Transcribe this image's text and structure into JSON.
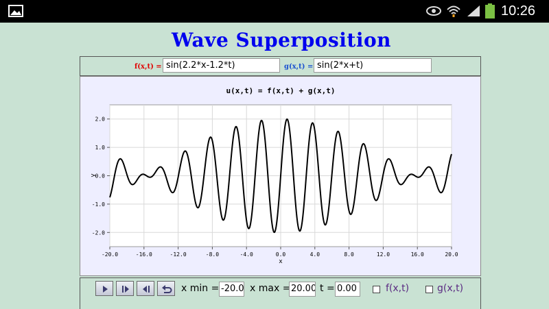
{
  "status_bar": {
    "time": "10:26"
  },
  "app": {
    "title": "Wave Superposition"
  },
  "functions": {
    "f_label": "f(x,t) =",
    "f_value": "sin(2.2*x-1.2*t)",
    "g_label": "g(x,t) =",
    "g_value": "sin(2*x+t)"
  },
  "chart_data": {
    "type": "line",
    "title": "u(x,t) = f(x,t) + g(x,t)",
    "xlabel": "x",
    "ylabel": "y",
    "xlim": [
      -20,
      20
    ],
    "ylim": [
      -2.5,
      2.5
    ],
    "x_ticks": [
      -20,
      -16,
      -12,
      -8,
      -4,
      0,
      4,
      8,
      12,
      16,
      20
    ],
    "x_tick_labels": [
      "-20.0",
      "-16.0",
      "-12.0",
      "-8.0",
      "-4.0",
      "0.0",
      "4.0",
      "8.0",
      "12.0",
      "16.0",
      "20.0"
    ],
    "y_ticks": [
      2,
      1,
      0,
      -1,
      -2
    ],
    "y_tick_labels": [
      "2.0",
      "1.0",
      "0.0",
      "-1.0",
      "-2.0"
    ],
    "grid": true,
    "series": [
      {
        "color": "#000000",
        "expression": "sin(2.2*x-1.2*t) + sin(2*x+t)",
        "t": 0
      }
    ]
  },
  "controls": {
    "xmin_label": "x min =",
    "xmin_value": "-20.00",
    "xmax_label": "x max =",
    "xmax_value": "20.00",
    "t_label": "t =",
    "t_value": "0.00",
    "show_f_label": "f(x,t)",
    "show_g_label": "g(x,t)",
    "buttons": [
      "play-icon",
      "step-forward-icon",
      "step-back-icon",
      "reset-icon"
    ]
  }
}
